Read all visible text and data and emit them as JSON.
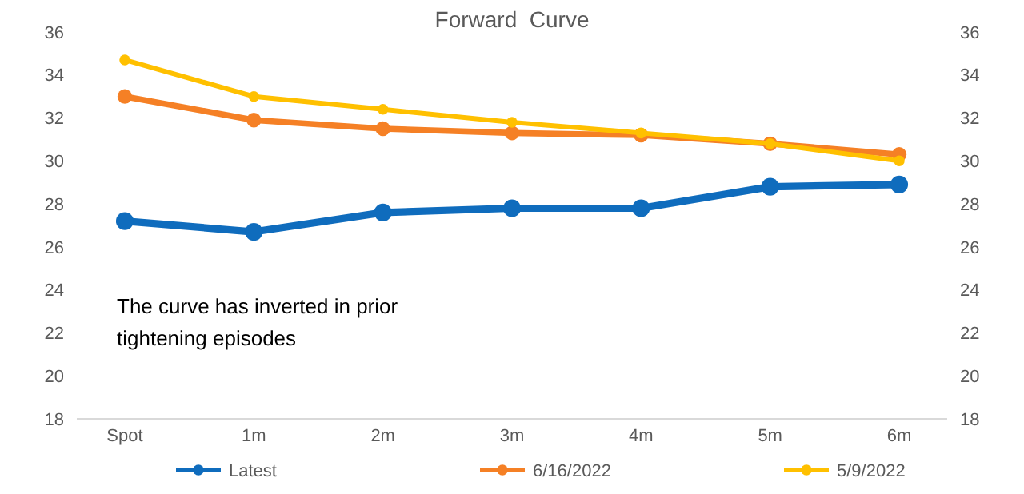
{
  "chart_data": {
    "type": "line",
    "title": "Forward  Curve",
    "categories": [
      "Spot",
      "1m",
      "2m",
      "3m",
      "4m",
      "5m",
      "6m"
    ],
    "series": [
      {
        "name": "Latest",
        "color": "#0f6cbd",
        "values": [
          27.2,
          26.7,
          27.6,
          27.8,
          27.8,
          28.8,
          28.9
        ]
      },
      {
        "name": "6/16/2022",
        "color": "#f58025",
        "values": [
          33.0,
          31.9,
          31.5,
          31.3,
          31.2,
          30.8,
          30.3
        ]
      },
      {
        "name": "5/9/2022",
        "color": "#ffc000",
        "values": [
          34.7,
          33.0,
          32.4,
          31.8,
          31.3,
          30.8,
          30.0
        ]
      }
    ],
    "ylim": [
      18,
      36
    ],
    "yticks": [
      18,
      20,
      22,
      24,
      26,
      28,
      30,
      32,
      34,
      36
    ],
    "y2lim": [
      18,
      36
    ],
    "y2ticks": [
      18,
      20,
      22,
      24,
      26,
      28,
      30,
      32,
      34,
      36
    ],
    "annotations": [
      "The curve has inverted in prior tightening episodes"
    ],
    "legend": "bottom",
    "marker": "circle",
    "grid": false,
    "line_style": "solid"
  }
}
